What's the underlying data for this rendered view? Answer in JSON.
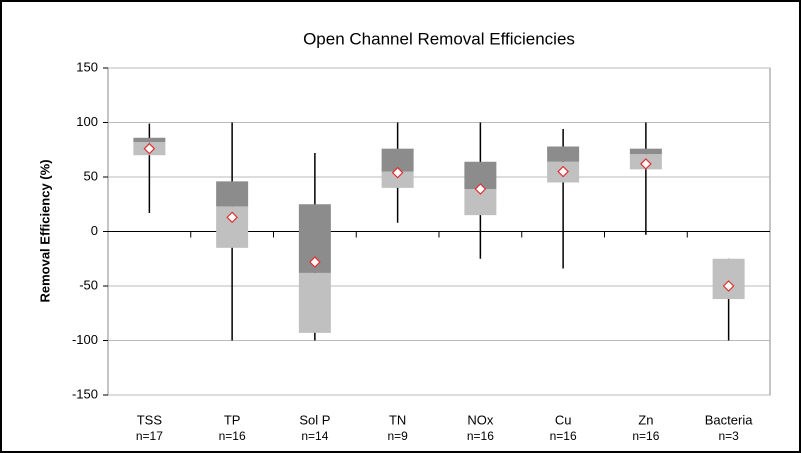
{
  "chart_data": {
    "type": "box",
    "title": "Open Channel Removal Efficiencies",
    "ylabel": "Removal Efficiency (%)",
    "categories": [
      "TSS",
      "TP",
      "Sol P",
      "TN",
      "NOx",
      "Cu",
      "Zn",
      "Bacteria"
    ],
    "n_labels": [
      "n=17",
      "n=16",
      "n=14",
      "n=9",
      "n=16",
      "n=16",
      "n=16",
      "n=3"
    ],
    "boxes": [
      {
        "min": 17,
        "q1": 70,
        "median": 82,
        "q3": 86,
        "max": 99,
        "mean": 76
      },
      {
        "min": -100,
        "q1": -15,
        "median": 23,
        "q3": 46,
        "max": 100,
        "mean": 13
      },
      {
        "min": -100,
        "q1": -93,
        "median": -38,
        "q3": 25,
        "max": 72,
        "mean": -28
      },
      {
        "min": 8,
        "q1": 40,
        "median": 55,
        "q3": 76,
        "max": 100,
        "mean": 54
      },
      {
        "min": -25,
        "q1": 15,
        "median": 39,
        "q3": 64,
        "max": 100,
        "mean": 39
      },
      {
        "min": -34,
        "q1": 45,
        "median": 64,
        "q3": 78,
        "max": 94,
        "mean": 55
      },
      {
        "min": -3,
        "q1": 57,
        "median": 71,
        "q3": 76,
        "max": 100,
        "mean": 62
      },
      {
        "min": -100,
        "q1": -62,
        "median": -25,
        "q3": -25,
        "max": -25,
        "mean": -50
      }
    ],
    "ylim": [
      -150,
      150
    ],
    "yticks": [
      -150,
      -100,
      -50,
      0,
      50,
      100,
      150
    ],
    "grid": true,
    "upper_color": "#8c8c8c",
    "lower_color": "#c0c0c0",
    "mean_color": "#e03030"
  }
}
